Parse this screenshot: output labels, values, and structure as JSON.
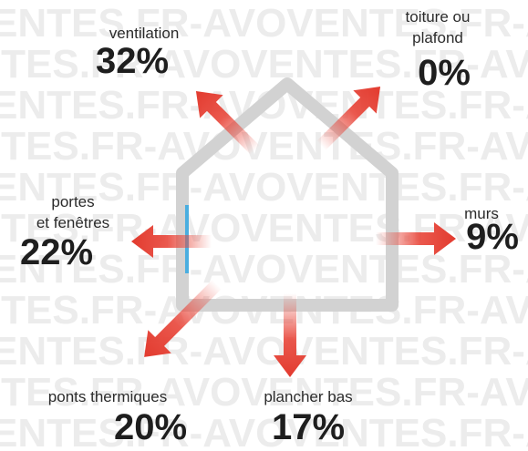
{
  "watermark": "ENTES.FR-AVOVENTES.FR-AVOVENTES.FR-AV",
  "items": [
    {
      "label": [
        "ventilation"
      ],
      "value": "32%"
    },
    {
      "label": [
        "toiture ou",
        "plafond"
      ],
      "value": "0%"
    },
    {
      "label": [
        "portes",
        "et fenêtres"
      ],
      "value": "22%"
    },
    {
      "label": [
        "murs"
      ],
      "value": "9%"
    },
    {
      "label": [
        "ponts thermiques"
      ],
      "value": "20%"
    },
    {
      "label": [
        "plancher bas"
      ],
      "value": "17%"
    }
  ]
}
